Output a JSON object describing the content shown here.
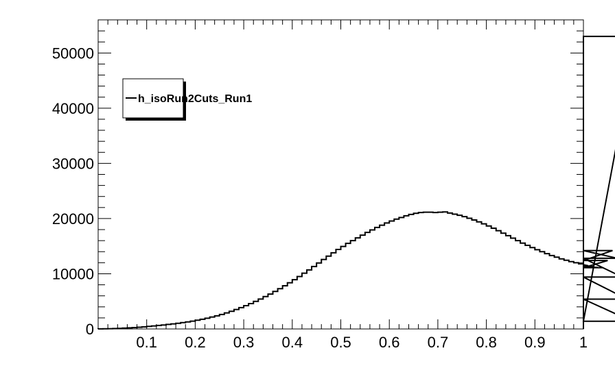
{
  "chart_data": {
    "type": "histogram",
    "title": "",
    "xlabel": "",
    "ylabel": "",
    "xlim": [
      0.0,
      1.0
    ],
    "ylim": [
      0,
      56000
    ],
    "x_major_ticks": [
      0.1,
      0.2,
      0.3,
      0.4,
      0.5,
      0.6,
      0.7,
      0.8,
      0.9,
      1.0
    ],
    "x_tick_labels": [
      "0.1",
      "0.2",
      "0.3",
      "0.4",
      "0.5",
      "0.6",
      "0.7",
      "0.8",
      "0.9",
      "1"
    ],
    "y_major_ticks": [
      0,
      10000,
      20000,
      30000,
      40000,
      50000
    ],
    "y_tick_labels": [
      "0",
      "10000",
      "20000",
      "30000",
      "40000",
      "50000"
    ],
    "legend": {
      "entries": [
        "h_isoRun2Cuts_Run1"
      ],
      "position": "top-left"
    },
    "series": [
      {
        "name": "h_isoRun2Cuts_Run1",
        "bin_width": 0.01,
        "bin_start": 0.0,
        "values": [
          20,
          30,
          50,
          80,
          110,
          150,
          200,
          250,
          310,
          380,
          460,
          540,
          630,
          720,
          820,
          920,
          1030,
          1150,
          1280,
          1420,
          1580,
          1750,
          1940,
          2150,
          2380,
          2630,
          2900,
          3200,
          3520,
          3860,
          4220,
          4600,
          5000,
          5420,
          5860,
          6320,
          6800,
          7300,
          7820,
          8360,
          8920,
          9500,
          10100,
          10700,
          11320,
          11950,
          12580,
          13200,
          13800,
          14400,
          14950,
          15500,
          16000,
          16500,
          17000,
          17500,
          17950,
          18400,
          18800,
          19200,
          19550,
          19900,
          20200,
          20500,
          20750,
          20950,
          21100,
          21150,
          21150,
          21100,
          21150,
          21200,
          21000,
          20800,
          20600,
          20350,
          20050,
          19750,
          19400,
          19050,
          18650,
          18250,
          17800,
          17350,
          16900,
          16450,
          16000,
          15550,
          15150,
          14750,
          14350,
          14000,
          13650,
          13300,
          13000,
          12700,
          12450,
          12200,
          12000,
          11800,
          11650,
          11450,
          11300,
          11150,
          11100,
          12400,
          14200,
          12800,
          9400,
          5400,
          1400,
          53000
        ]
      }
    ]
  }
}
